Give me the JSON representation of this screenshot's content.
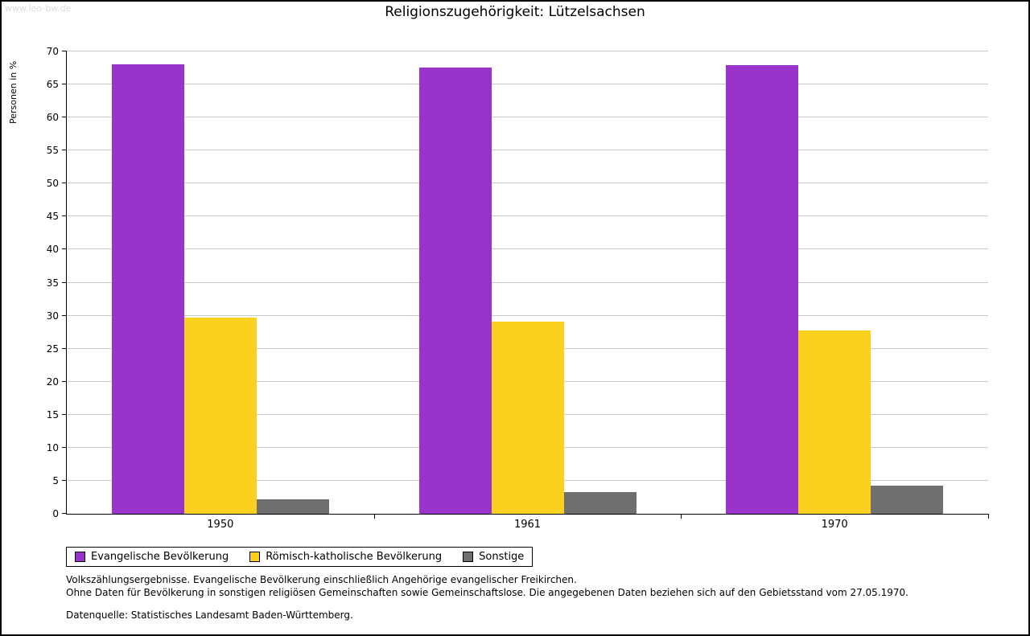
{
  "watermark": "www.leo-bw.de",
  "chart_data": {
    "type": "bar",
    "title": "Religionszugehörigkeit: Lützelsachsen",
    "xlabel": "",
    "ylabel": "Personen in %",
    "categories": [
      "1950",
      "1961",
      "1970"
    ],
    "series": [
      {
        "name": "Evangelische Bevölkerung",
        "color": "#9933cc",
        "values": [
          68.0,
          67.6,
          67.9
        ]
      },
      {
        "name": "Römisch-katholische Bevölkerung",
        "color": "#fcd01e",
        "values": [
          29.7,
          29.1,
          27.8
        ]
      },
      {
        "name": "Sonstige",
        "color": "#6f6f6f",
        "values": [
          2.2,
          3.3,
          4.3
        ]
      }
    ],
    "ylim": [
      0,
      70
    ],
    "ytick_step": 5,
    "grid": true,
    "legend_position": "bottom-left"
  },
  "footnotes": [
    "Volkszählungsergebnisse. Evangelische Bevölkerung einschließlich Angehörige evangelischer Freikirchen.",
    "Ohne Daten für Bevölkerung in sonstigen religiösen Gemeinschaften sowie Gemeinschaftslose. Die angegebenen Daten beziehen sich auf den Gebietsstand vom 27.05.1970.",
    "Datenquelle: Statistisches Landesamt Baden-Württemberg."
  ]
}
